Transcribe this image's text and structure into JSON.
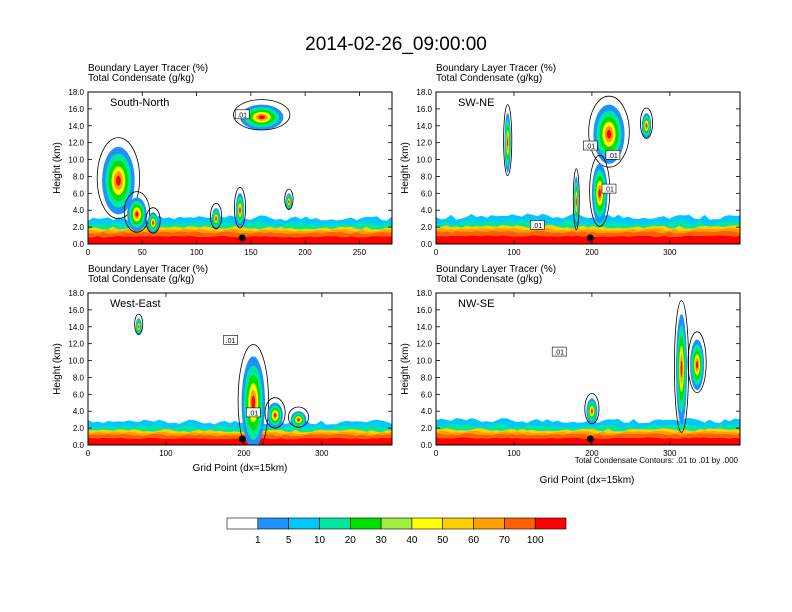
{
  "title": "2014-02-26_09:00:00",
  "subtitle_line1": "Boundary Layer Tracer   (%)",
  "subtitle_line2": "Total Condensate   (g/kg)",
  "ylabel": "Height (km)",
  "xlabel": "Grid Point (dx=15km)",
  "contour_note": "Total Condensate Contours: .01 to .01 by .000",
  "colors": {
    "fill_levels": [
      "#ffffff",
      "#1e90ff",
      "#00c8ff",
      "#00e8a0",
      "#00e000",
      "#a0f040",
      "#ffff00",
      "#ffd000",
      "#ffa000",
      "#ff6000",
      "#ff0000"
    ],
    "marker": "#000000"
  },
  "chart_data": [
    {
      "type": "heatmap",
      "panel": "South-North",
      "title": "South-North",
      "subtitle": "Boundary Layer Tracer   (%)",
      "subtitle2": "Total Condensate   (g/kg)",
      "ylabel": "Height (km)",
      "xlabel": "",
      "xlim": [
        0,
        280
      ],
      "ylim": [
        0,
        18
      ],
      "xticks": [
        0,
        50,
        100,
        150,
        200,
        250
      ],
      "yticks": [
        "0.0",
        "2.0",
        "4.0",
        "6.0",
        "8.0",
        "10.0",
        "12.0",
        "14.0",
        "16.0",
        "18.0"
      ],
      "center_marker_x": 142,
      "contour_labels": [
        {
          "text": ".01",
          "x": 142,
          "y": 15.3
        }
      ],
      "tracer_layer_top_km": 1.7,
      "plumes": [
        {
          "x": 28,
          "z": 7.5,
          "w": 30,
          "h": 8
        },
        {
          "x": 45,
          "z": 3.5,
          "w": 18,
          "h": 4
        },
        {
          "x": 60,
          "z": 2.5,
          "w": 10,
          "h": 2.5
        },
        {
          "x": 118,
          "z": 3.0,
          "w": 8,
          "h": 2.5
        },
        {
          "x": 140,
          "z": 4.0,
          "w": 8,
          "h": 4
        },
        {
          "x": 160,
          "z": 15.0,
          "w": 40,
          "h": 3
        },
        {
          "x": 185,
          "z": 5.0,
          "w": 6,
          "h": 2
        }
      ]
    },
    {
      "type": "heatmap",
      "panel": "SW-NE",
      "title": "SW-NE",
      "subtitle": "Boundary Layer Tracer   (%)",
      "subtitle2": "Total Condensate   (g/kg)",
      "ylabel": "Height (km)",
      "xlabel": "",
      "xlim": [
        0,
        390
      ],
      "ylim": [
        0,
        18
      ],
      "xticks": [
        0,
        100,
        200,
        300
      ],
      "yticks": [
        "0.0",
        "2.0",
        "4.0",
        "6.0",
        "8.0",
        "10.0",
        "12.0",
        "14.0",
        "16.0",
        "18.0"
      ],
      "center_marker_x": 198,
      "contour_labels": [
        {
          "text": ".01",
          "x": 198,
          "y": 11.6
        },
        {
          "text": ".01",
          "x": 227,
          "y": 10.5
        },
        {
          "text": ".01",
          "x": 222,
          "y": 6.5
        },
        {
          "text": ".01",
          "x": 130,
          "y": 2.2
        }
      ],
      "tracer_layer_top_km": 1.8,
      "plumes": [
        {
          "x": 92,
          "z": 12.0,
          "w": 8,
          "h": 7
        },
        {
          "x": 180,
          "z": 5.0,
          "w": 6,
          "h": 6
        },
        {
          "x": 222,
          "z": 13.0,
          "w": 40,
          "h": 7
        },
        {
          "x": 210,
          "z": 6.0,
          "w": 20,
          "h": 7
        },
        {
          "x": 270,
          "z": 14.0,
          "w": 12,
          "h": 3
        }
      ]
    },
    {
      "type": "heatmap",
      "panel": "West-East",
      "title": "West-East",
      "subtitle": "Boundary Layer Tracer   (%)",
      "subtitle2": "Total Condensate   (g/kg)",
      "ylabel": "Height (km)",
      "xlabel": "Grid Point (dx=15km)",
      "xlim": [
        0,
        390
      ],
      "ylim": [
        0,
        18
      ],
      "xticks": [
        0,
        100,
        200,
        300
      ],
      "yticks": [
        "0.0",
        "2.0",
        "4.0",
        "6.0",
        "8.0",
        "10.0",
        "12.0",
        "14.0",
        "16.0",
        "18.0"
      ],
      "center_marker_x": 198,
      "contour_labels": [
        {
          "text": ".01",
          "x": 183,
          "y": 12.4
        },
        {
          "text": ".01",
          "x": 212,
          "y": 3.8
        }
      ],
      "tracer_layer_top_km": 1.5,
      "plumes": [
        {
          "x": 65,
          "z": 14.0,
          "w": 8,
          "h": 2
        },
        {
          "x": 212,
          "z": 5.0,
          "w": 30,
          "h": 11
        },
        {
          "x": 240,
          "z": 3.5,
          "w": 20,
          "h": 3
        },
        {
          "x": 270,
          "z": 3.0,
          "w": 20,
          "h": 2
        }
      ]
    },
    {
      "type": "heatmap",
      "panel": "NW-SE",
      "title": "NW-SE",
      "subtitle": "Boundary Layer Tracer   (%)",
      "subtitle2": "Total Condensate   (g/kg)",
      "ylabel": "Height (km)",
      "xlabel": "Grid Point (dx=15km)",
      "xlim": [
        0,
        390
      ],
      "ylim": [
        0,
        18
      ],
      "xticks": [
        0,
        100,
        200,
        300
      ],
      "yticks": [
        "0.0",
        "2.0",
        "4.0",
        "6.0",
        "8.0",
        "10.0",
        "12.0",
        "14.0",
        "16.0",
        "18.0"
      ],
      "center_marker_x": 198,
      "contour_labels": [
        {
          "text": ".01",
          "x": 158,
          "y": 11.0
        }
      ],
      "tracer_layer_top_km": 1.6,
      "plumes": [
        {
          "x": 200,
          "z": 4.0,
          "w": 14,
          "h": 3
        },
        {
          "x": 315,
          "z": 9.0,
          "w": 14,
          "h": 13
        },
        {
          "x": 335,
          "z": 9.5,
          "w": 18,
          "h": 6
        }
      ]
    }
  ],
  "labelbar": {
    "levels": [
      "1",
      "5",
      "10",
      "20",
      "30",
      "40",
      "50",
      "60",
      "70",
      "100"
    ]
  }
}
